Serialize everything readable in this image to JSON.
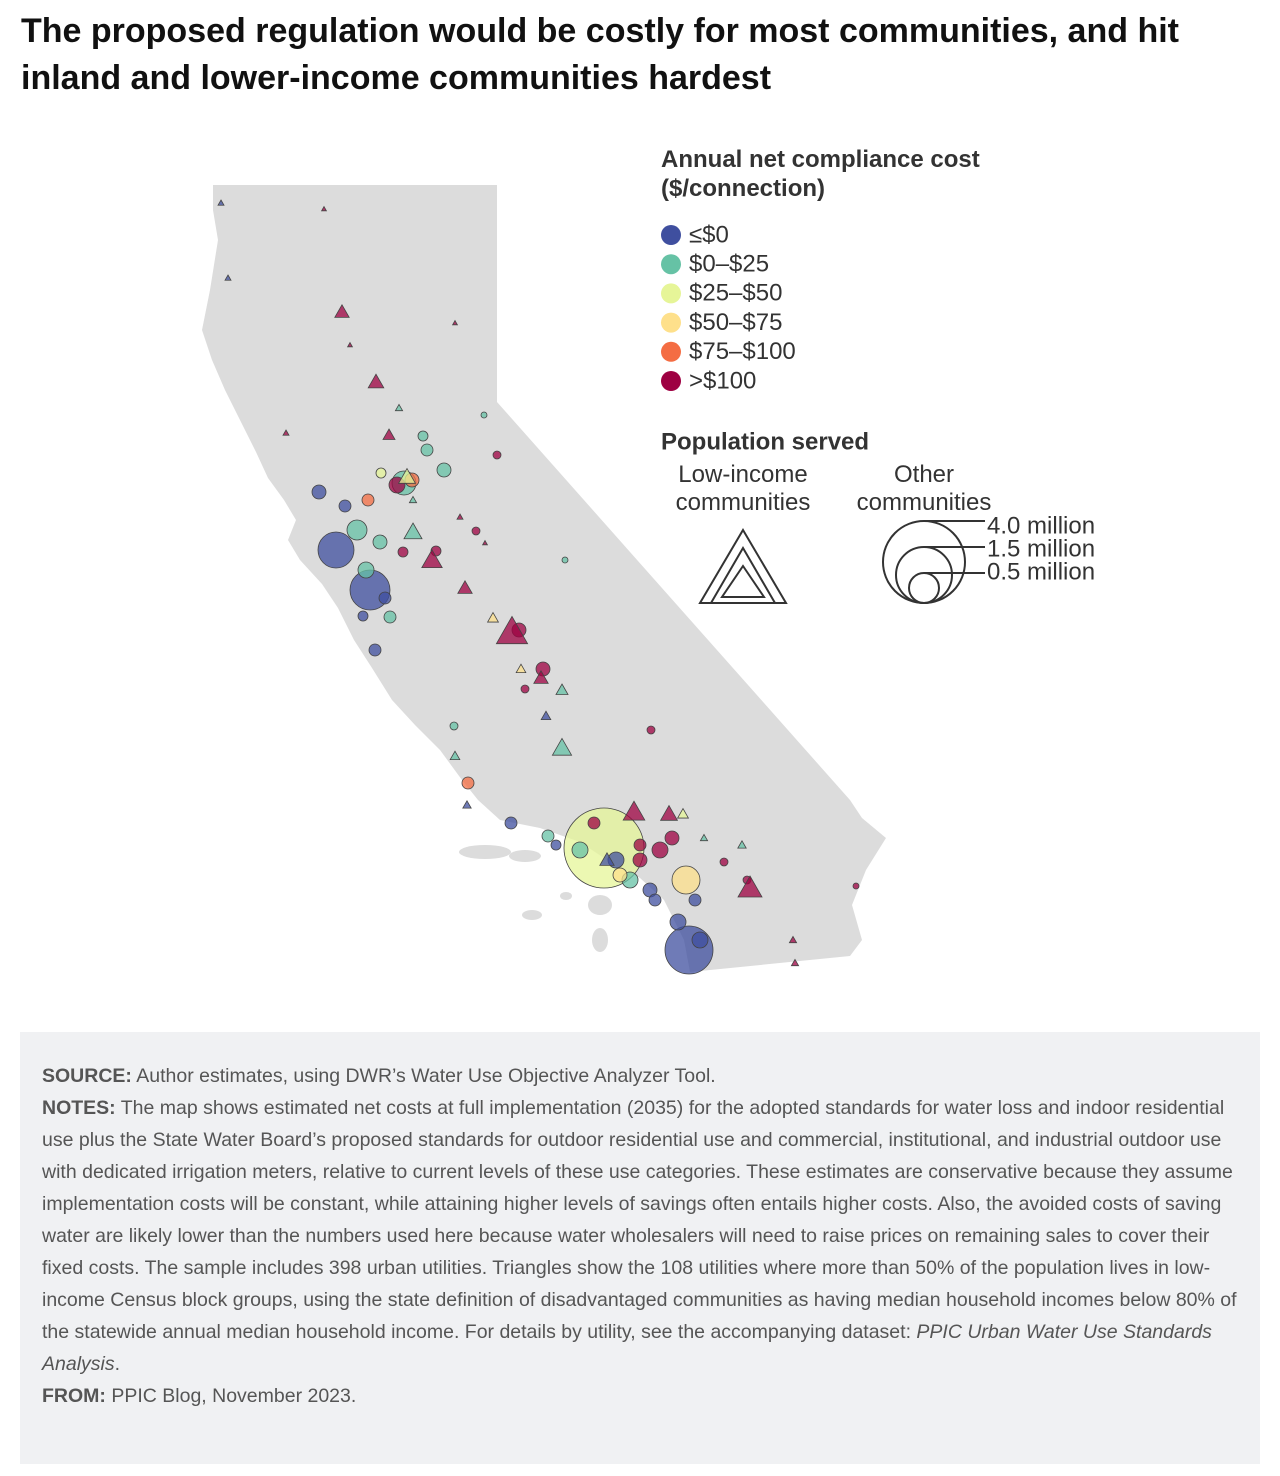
{
  "title": "The proposed regulation would be costly for most communities, and hit inland and lower-income communities hardest",
  "legend": {
    "title": "Annual net compliance cost ($/connection)",
    "items": [
      {
        "label": "≤$0",
        "color": "#3f4f9f"
      },
      {
        "label": "$0–$25",
        "color": "#66c2a5"
      },
      {
        "label": "$25–$50",
        "color": "#e6f598"
      },
      {
        "label": "$50–$75",
        "color": "#fee08b"
      },
      {
        "label": "$75–$100",
        "color": "#f46d43"
      },
      {
        "label": ">$100",
        "color": "#9e0142"
      }
    ]
  },
  "size_legend": {
    "title": "Population served",
    "low_income": "Low-income communities",
    "other": "Other communities",
    "sizes": [
      "4.0 million",
      "1.5 million",
      "0.5 million"
    ]
  },
  "footer": {
    "source_label": "SOURCE:",
    "source": "Author estimates, using DWR’s Water Use Objective Analyzer Tool.",
    "notes_label": "NOTES:",
    "notes": "The map shows estimated net costs at full implementation (2035) for the adopted standards for water loss and indoor residential use plus the State Water Board’s proposed standards for outdoor residential use and commercial, institutional, and industrial outdoor use with dedicated irrigation meters, relative to current levels of these use categories. These estimates are conservative because they assume implementation costs will be constant, while attaining higher levels of savings often entails higher costs. Also, the avoided costs of saving water are likely lower than the numbers used here because water wholesalers will need to raise prices on remaining sales to cover their fixed costs. The sample includes 398 urban utilities. Triangles show the 108 utilities where more than 50% of the population lives in low-income Census block groups, using the state definition of disadvantaged communities as having median household incomes below 80% of the statewide annual median household income. For details by utility, see the accompanying dataset: ",
    "notes_italic": "PPIC Urban Water Use Standards Analysis",
    "notes_end": ".",
    "from_label": "FROM:",
    "from": "PPIC Blog, November 2023."
  }
}
